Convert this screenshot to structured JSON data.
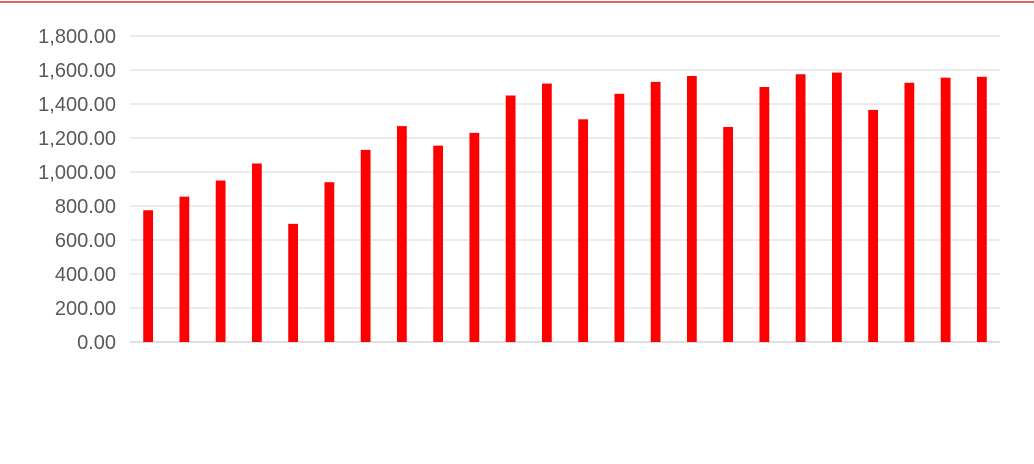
{
  "chart_data": {
    "type": "bar",
    "title": "",
    "xlabel": "",
    "ylabel": "",
    "ylim": [
      0,
      1800
    ],
    "yticks": [
      "0.00",
      "200.00",
      "400.00",
      "600.00",
      "800.00",
      "1,000.00",
      "1,200.00",
      "1,400.00",
      "1,600.00",
      "1,800.00"
    ],
    "grid": true,
    "legend": "none",
    "categories": [
      "",
      "",
      "",
      "",
      "",
      "",
      "",
      "",
      "",
      "",
      "",
      "",
      "",
      "",
      "",
      "",
      "",
      "",
      "",
      "",
      "",
      "",
      "",
      ""
    ],
    "values": [
      775,
      855,
      950,
      1050,
      695,
      940,
      1130,
      1270,
      1155,
      1230,
      1450,
      1520,
      1310,
      1460,
      1530,
      1565,
      1265,
      1500,
      1575,
      1585,
      1365,
      1525,
      1555,
      1560
    ],
    "colors": {
      "bar": "#ff0000",
      "grid": "#d9d9d9",
      "tick_text": "#595959",
      "frame": "#e06666"
    }
  }
}
